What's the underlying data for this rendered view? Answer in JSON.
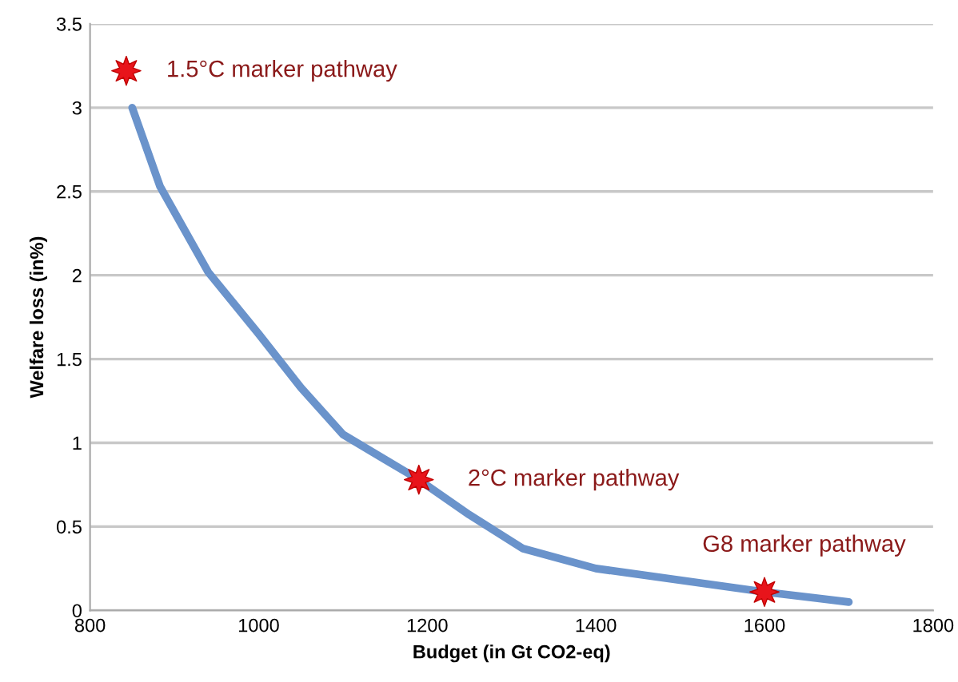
{
  "chart_data": {
    "type": "line",
    "xlabel": "Budget (in Gt CO2-eq)",
    "ylabel": "Welfare loss (in%)",
    "series": [
      {
        "color": "#6a93cb",
        "x": [
          850,
          883,
          940,
          1000,
          1050,
          1100,
          1150,
          1190,
          1250,
          1313,
          1400,
          1500,
          1600,
          1700
        ],
        "values": [
          3.0,
          2.53,
          2.02,
          1.65,
          1.33,
          1.05,
          0.9,
          0.78,
          0.57,
          0.37,
          0.25,
          0.18,
          0.11,
          0.05
        ]
      },
      {
        "type": "scatter",
        "color": "#e8141b",
        "marker": "star",
        "x": [
          843,
          1190,
          1600
        ],
        "values": [
          3.22,
          0.78,
          0.11
        ]
      }
    ],
    "annotations": [
      {
        "text": "1.5°C marker pathway",
        "x": 843,
        "y": 3.22
      },
      {
        "text": "2°C marker pathway",
        "x": 1190,
        "y": 0.78
      },
      {
        "text": "G8 marker pathway",
        "x": 1600,
        "y": 0.11
      }
    ],
    "xlim": [
      800,
      1800
    ],
    "xticks": [
      800,
      1000,
      1200,
      1400,
      1600,
      1800
    ],
    "ylim": [
      0,
      3.5
    ],
    "yticks": [
      0,
      0.5,
      1,
      1.5,
      2,
      2.5,
      3,
      3.5
    ],
    "grid": "y"
  }
}
